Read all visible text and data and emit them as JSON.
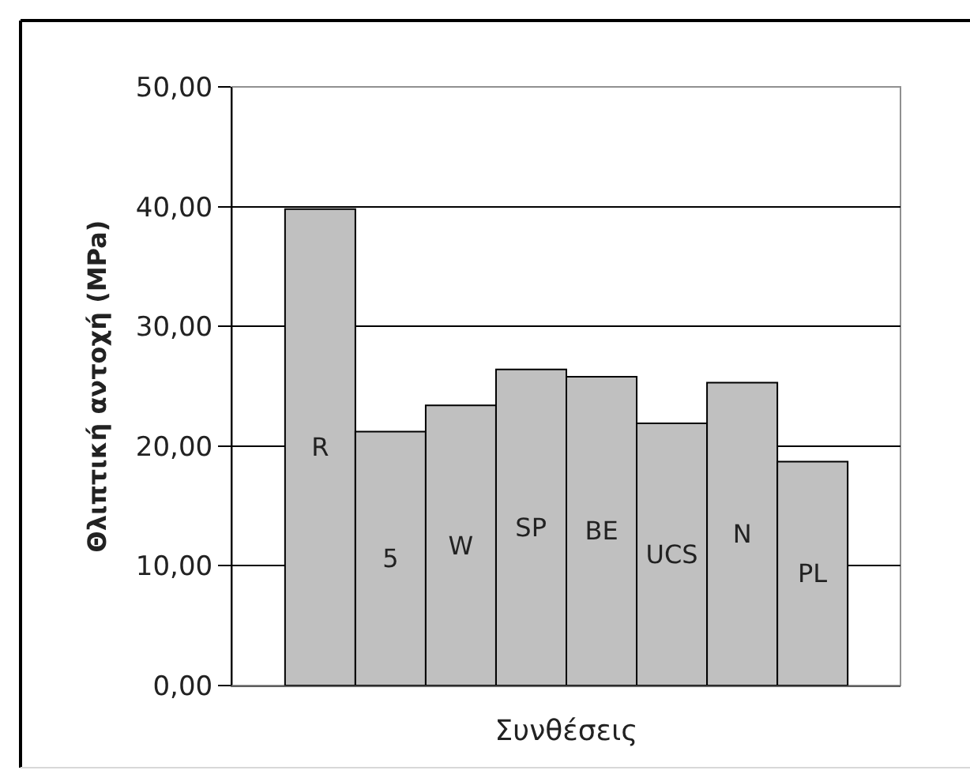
{
  "chart_data": {
    "type": "bar",
    "xlabel": "Συνθέσεις",
    "ylabel": "Θλιπτική αντοχή (MPa)",
    "categories": [
      null
    ],
    "series": [
      {
        "name": "R",
        "color": "#c0c0c0",
        "values": [
          39.8
        ]
      },
      {
        "name": "5",
        "color": "#c0c0c0",
        "values": [
          21.2
        ]
      },
      {
        "name": "W",
        "color": "#c0c0c0",
        "values": [
          23.4
        ]
      },
      {
        "name": "SP",
        "color": "#c0c0c0",
        "values": [
          26.4
        ]
      },
      {
        "name": "BE",
        "color": "#c0c0c0",
        "values": [
          25.8
        ]
      },
      {
        "name": "UCS",
        "color": "#c0c0c0",
        "values": [
          21.9
        ]
      },
      {
        "name": "N",
        "color": "#c0c0c0",
        "values": [
          25.3
        ]
      },
      {
        "name": "PL",
        "color": "#c0c0c0",
        "values": [
          18.7
        ]
      }
    ],
    "ylim": [
      0,
      50
    ],
    "yticks": [
      {
        "value": 0,
        "label": "0,00"
      },
      {
        "value": 10,
        "label": "10,00"
      },
      {
        "value": 20,
        "label": "20,00"
      },
      {
        "value": 30,
        "label": "30,00"
      },
      {
        "value": 40,
        "label": "40,00"
      },
      {
        "value": 50,
        "label": "50,00"
      }
    ],
    "grid": "y",
    "legend": false
  }
}
